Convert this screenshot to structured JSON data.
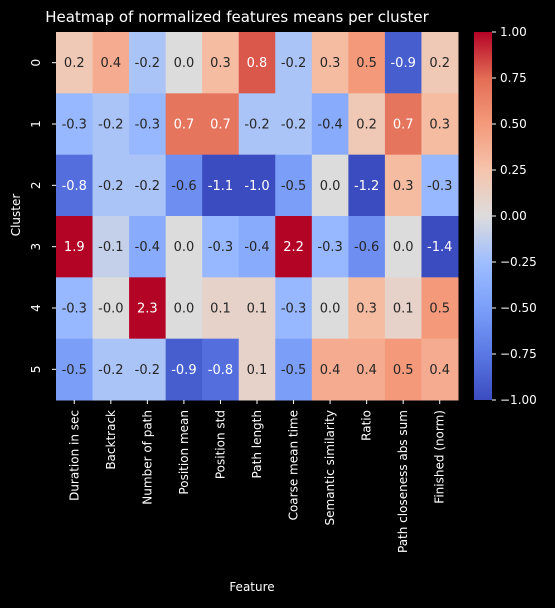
{
  "chart_data": {
    "type": "heatmap",
    "title": "Heatmap of normalized features means per cluster",
    "xlabel": "Feature",
    "ylabel": "Cluster",
    "x_categories": [
      "Duration in sec",
      "Backtrack",
      "Number of path",
      "Position mean",
      "Position std",
      "Path length",
      "Coarse mean time",
      "Semantic similarity",
      "Ratio",
      "Path closeness abs sum",
      "Finished (norm)"
    ],
    "y_categories": [
      "0",
      "1",
      "2",
      "3",
      "4",
      "5"
    ],
    "values": [
      [
        0.2,
        0.4,
        -0.2,
        0.0,
        0.3,
        0.8,
        -0.2,
        0.3,
        0.5,
        -0.9,
        0.2
      ],
      [
        -0.3,
        -0.2,
        -0.3,
        0.7,
        0.7,
        -0.2,
        -0.2,
        -0.4,
        0.2,
        0.7,
        0.3
      ],
      [
        -0.8,
        -0.2,
        -0.2,
        -0.6,
        -1.1,
        -1.0,
        -0.5,
        0.0,
        -1.2,
        0.3,
        -0.3
      ],
      [
        1.9,
        -0.1,
        -0.4,
        0.0,
        -0.3,
        -0.4,
        2.2,
        -0.3,
        -0.6,
        0.0,
        -1.4
      ],
      [
        -0.3,
        -0.0,
        2.3,
        0.0,
        0.1,
        0.1,
        -0.3,
        0.0,
        0.3,
        0.1,
        0.5
      ],
      [
        -0.5,
        -0.2,
        -0.2,
        -0.9,
        -0.8,
        0.1,
        -0.5,
        0.4,
        0.4,
        0.5,
        0.4
      ]
    ],
    "value_labels": [
      [
        "0.2",
        "0.4",
        "-0.2",
        "0.0",
        "0.3",
        "0.8",
        "-0.2",
        "0.3",
        "0.5",
        "-0.9",
        "0.2"
      ],
      [
        "-0.3",
        "-0.2",
        "-0.3",
        "0.7",
        "0.7",
        "-0.2",
        "-0.2",
        "-0.4",
        "0.2",
        "0.7",
        "0.3"
      ],
      [
        "-0.8",
        "-0.2",
        "-0.2",
        "-0.6",
        "-1.1",
        "-1.0",
        "-0.5",
        "0.0",
        "-1.2",
        "0.3",
        "-0.3"
      ],
      [
        "1.9",
        "-0.1",
        "-0.4",
        "0.0",
        "-0.3",
        "-0.4",
        "2.2",
        "-0.3",
        "-0.6",
        "0.0",
        "-1.4"
      ],
      [
        "-0.3",
        "-0.0",
        "2.3",
        "0.0",
        "0.1",
        "0.1",
        "-0.3",
        "0.0",
        "0.3",
        "0.1",
        "0.5"
      ],
      [
        "-0.5",
        "-0.2",
        "-0.2",
        "-0.9",
        "-0.8",
        "0.1",
        "-0.5",
        "0.4",
        "0.4",
        "0.5",
        "0.4"
      ]
    ],
    "colormap": "coolwarm",
    "vmin": -1.0,
    "vmax": 1.0,
    "colorbar_ticks": [
      1.0,
      0.75,
      0.5,
      0.25,
      0.0,
      -0.25,
      -0.5,
      -0.75,
      -1.0
    ],
    "colorbar_tick_labels": [
      "1.00",
      "0.75",
      "0.50",
      "0.25",
      "0.00",
      "−0.25",
      "−0.50",
      "−0.75",
      "−1.00"
    ],
    "background_color": "#000000",
    "text_color": "#ffffff"
  }
}
